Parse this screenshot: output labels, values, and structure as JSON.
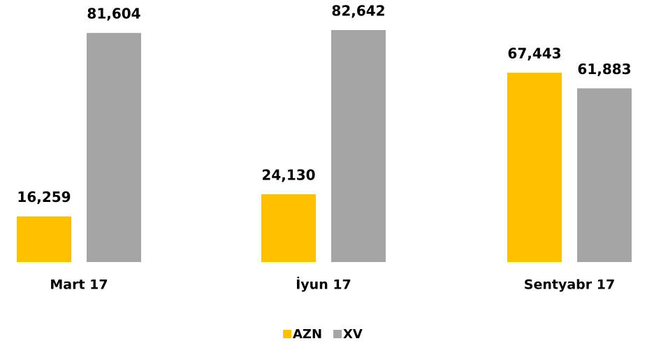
{
  "chart_data": {
    "type": "bar",
    "categories": [
      "Mart 17",
      "İyun 17",
      "Sentyabr 17"
    ],
    "series": [
      {
        "name": "AZN",
        "color": "#FFC000",
        "values": [
          16259,
          24130,
          67443
        ],
        "value_labels": [
          "16,259",
          "24,130",
          "67,443"
        ]
      },
      {
        "name": "XV",
        "color": "#A5A5A5",
        "values": [
          81604,
          82642,
          61883
        ],
        "value_labels": [
          "81,604",
          "82,642",
          "61,883"
        ]
      }
    ],
    "legend": "bottom"
  }
}
